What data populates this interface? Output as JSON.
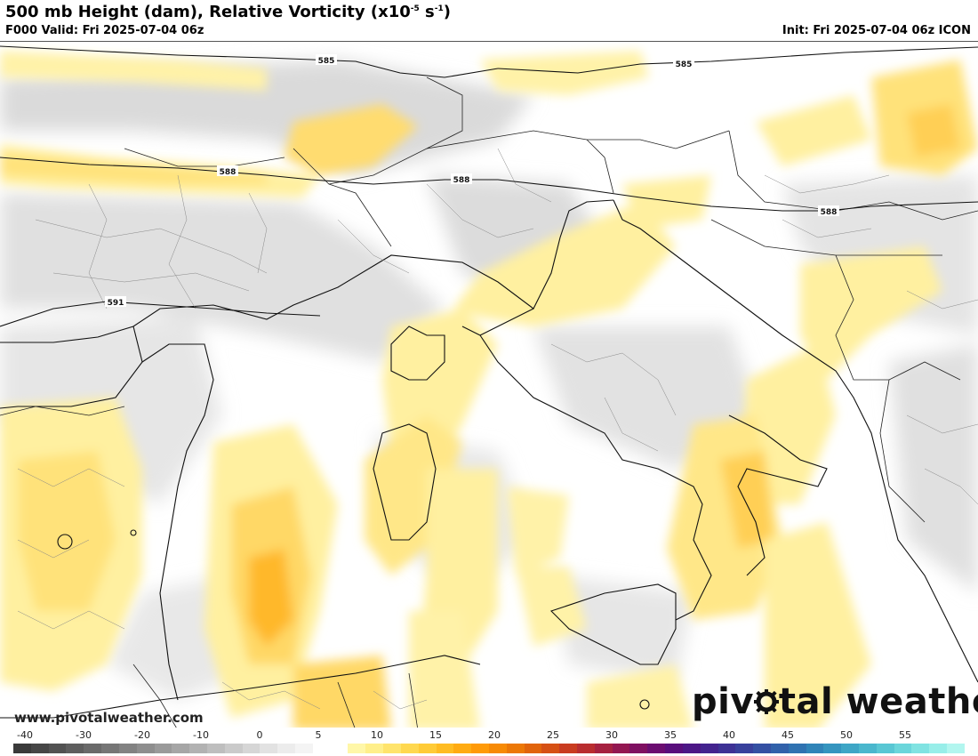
{
  "header": {
    "title_main": "500 mb Height (dam), Relative Vorticity (x10",
    "title_sup1": "-5",
    "title_mid": " s",
    "title_sup2": "-1",
    "title_end": ")",
    "valid": "F000 Valid: Fri 2025-07-04 06z",
    "init": "Init: Fri 2025-07-04 06z ICON"
  },
  "map": {
    "height_contours": [
      {
        "label": "585"
      },
      {
        "label": "585"
      },
      {
        "label": "588"
      },
      {
        "label": "588"
      },
      {
        "label": "588"
      },
      {
        "label": "591"
      }
    ]
  },
  "footer": {
    "website": "www.pivotalweather.com",
    "logo_part1": "piv",
    "logo_part2": "tal weather"
  },
  "colorbar": {
    "ticks": [
      "-40",
      "-30",
      "-20",
      "-10",
      "0",
      "5",
      "10",
      "15",
      "20",
      "25",
      "30",
      "35",
      "40",
      "45",
      "50",
      "55"
    ],
    "colors": [
      "#3a3a3a",
      "#464646",
      "#525252",
      "#5e5e5e",
      "#6a6a6a",
      "#767676",
      "#828282",
      "#8e8e8e",
      "#9a9a9a",
      "#a6a6a6",
      "#b2b2b2",
      "#bebebe",
      "#cacaca",
      "#d6d6d6",
      "#e2e2e2",
      "#ececec",
      "#f4f4f4",
      "#ffffff",
      "#ffffff",
      "#fff7a8",
      "#ffef8a",
      "#ffe46c",
      "#ffd84f",
      "#ffcb37",
      "#ffbc22",
      "#ffab12",
      "#ff9a08",
      "#f78a05",
      "#ec7806",
      "#e1640b",
      "#d65014",
      "#c93c20",
      "#b92d2f",
      "#a62140",
      "#931751",
      "#7f1061",
      "#6b0d70",
      "#590e7c",
      "#4c1786",
      "#43238e",
      "#3d3195",
      "#38409c",
      "#3450a3",
      "#3161aa",
      "#2f72b1",
      "#3084b8",
      "#3595bf",
      "#3ea6c6",
      "#4ab7cd",
      "#59c7d4",
      "#6bd6db",
      "#80e3e2",
      "#98eee9",
      "#b2f6ef"
    ]
  }
}
